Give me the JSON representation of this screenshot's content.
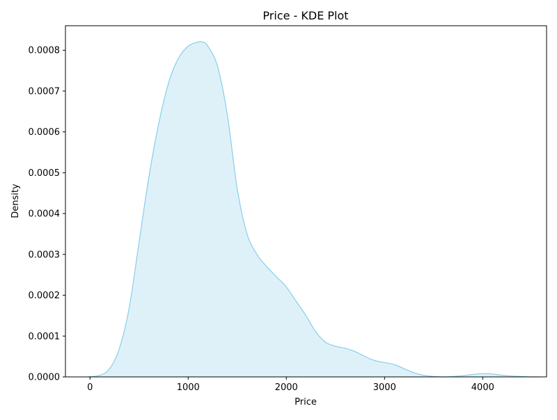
{
  "chart_data": {
    "type": "area",
    "title": "Price - KDE Plot",
    "xlabel": "Price",
    "ylabel": "Density",
    "xlim": [
      -250,
      4650
    ],
    "ylim": [
      0,
      0.00086
    ],
    "grid": false,
    "x_ticks": [
      "0",
      "1000",
      "2000",
      "3000",
      "4000"
    ],
    "x_tick_values": [
      0,
      1000,
      2000,
      3000,
      4000
    ],
    "y_ticks": [
      "0.0000",
      "0.0001",
      "0.0002",
      "0.0003",
      "0.0004",
      "0.0005",
      "0.0006",
      "0.0007",
      "0.0008"
    ],
    "y_tick_values": [
      0,
      0.0001,
      0.0002,
      0.0003,
      0.0004,
      0.0005,
      0.0006,
      0.0007,
      0.0008
    ],
    "series": [
      {
        "color": "#87ceeb",
        "fill_color": "#dff1f8",
        "x": [
          -20,
          100,
          200,
          300,
          400,
          500,
          600,
          700,
          800,
          900,
          1000,
          1100,
          1150,
          1200,
          1300,
          1400,
          1500,
          1600,
          1700,
          1800,
          1900,
          2000,
          2100,
          2200,
          2300,
          2400,
          2500,
          2600,
          2700,
          2800,
          2900,
          3000,
          3100,
          3200,
          3300,
          3400,
          3500,
          3600,
          3700,
          3800,
          3900,
          4000,
          4100,
          4200,
          4300,
          4400,
          4500,
          4570
        ],
        "y": [
          0.0,
          4e-06,
          2e-05,
          7e-05,
          0.00017,
          0.00033,
          0.00049,
          0.00062,
          0.00072,
          0.00078,
          0.00081,
          0.00082,
          0.00082,
          0.00081,
          0.00076,
          0.00064,
          0.00046,
          0.00035,
          0.0003,
          0.00027,
          0.000245,
          0.00022,
          0.000185,
          0.00015,
          0.00011,
          8.5e-05,
          7.5e-05,
          7e-05,
          6.2e-05,
          5e-05,
          4e-05,
          3.5e-05,
          3e-05,
          2e-05,
          1e-05,
          4e-06,
          1e-06,
          0.0,
          1e-06,
          3e-06,
          6e-06,
          8e-06,
          7e-06,
          4e-06,
          2e-06,
          1e-06,
          0.0,
          0.0
        ]
      }
    ]
  }
}
